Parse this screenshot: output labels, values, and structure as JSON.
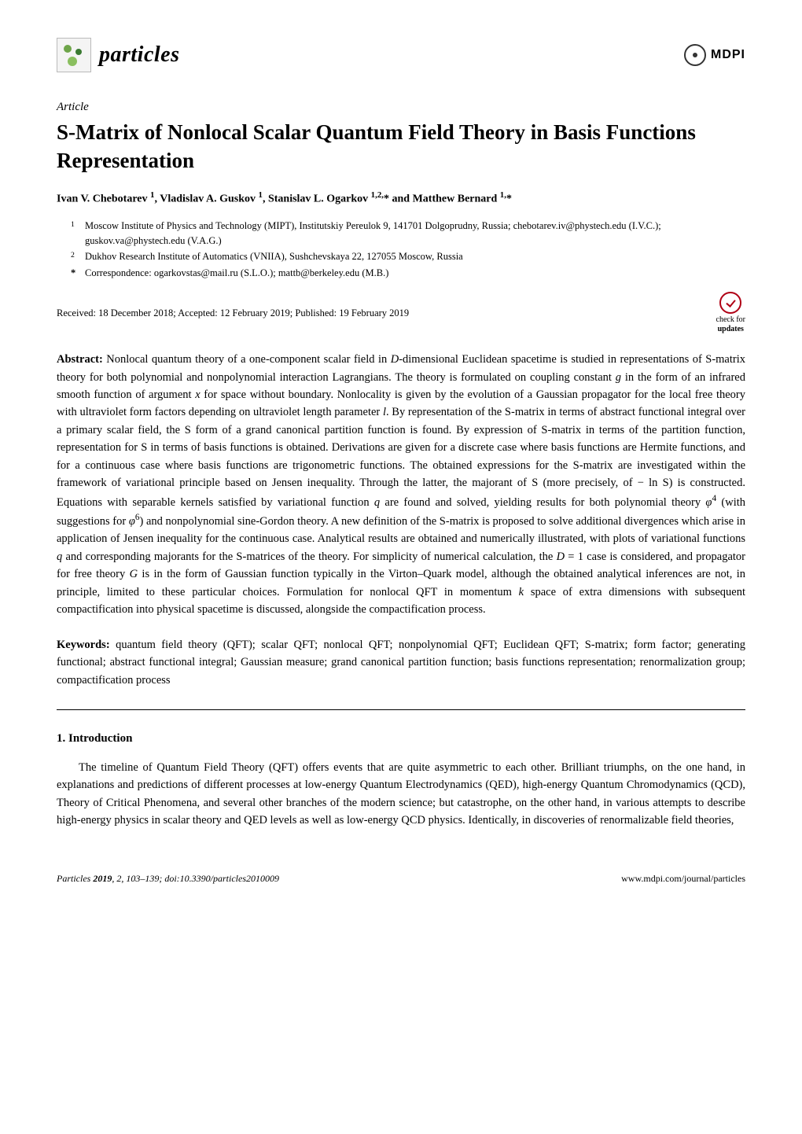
{
  "journal": {
    "name": "particles",
    "logo_bg": "#f4f4f4",
    "logo_border": "#bababa"
  },
  "publisher": {
    "name": "MDPI"
  },
  "article_label": "Article",
  "title_html": "<span class=\"calS\">S</span>-Matrix of Nonlocal Scalar Quantum Field Theory in Basis Functions Representation",
  "authors_html": "Ivan V. Chebotarev <sup>1</sup>, Vladislav A. Guskov <sup>1</sup>, Stanislav L. Ogarkov <sup>1,2,</sup>* and Matthew Bernard <sup>1,</sup>*",
  "affiliations": [
    {
      "num": "1",
      "text": "Moscow Institute of Physics and Technology (MIPT), Institutskiy Pereulok 9, 141701 Dolgoprudny, Russia; chebotarev.iv@phystech.edu (I.V.C.); guskov.va@phystech.edu (V.A.G.)"
    },
    {
      "num": "2",
      "text": "Dukhov Research Institute of Automatics (VNIIA), Sushchevskaya 22, 127055 Moscow, Russia"
    },
    {
      "num": "*",
      "text": "Correspondence: ogarkovstas@mail.ru (S.L.O.); mattb@berkeley.edu (M.B.)"
    }
  ],
  "dates": "Received: 18 December 2018; Accepted: 12 February 2019; Published: 19 February 2019",
  "updates_badge": {
    "top": "check for",
    "bottom": "updates",
    "ring_color": "#b00015"
  },
  "abstract_label": "Abstract:",
  "abstract_html": "Nonlocal quantum theory of a one-component scalar field in <i>D</i>-dimensional Euclidean spacetime is studied in representations of <span class=\"calS\">S</span>-matrix theory for both polynomial and nonpolynomial interaction Lagrangians. The theory is formulated on coupling constant <i>g</i> in the form of an infrared smooth function of argument <i>x</i> for space without boundary. Nonlocality is given by the evolution of a Gaussian propagator for the local free theory with ultraviolet form factors depending on ultraviolet length parameter <i>l</i>. By representation of the <span class=\"calS\">S</span>-matrix in terms of abstract functional integral over a primary scalar field, the <span class=\"calS\">S</span> form of a grand canonical partition function is found. By expression of <span class=\"calS\">S</span>-matrix in terms of the partition function, representation for <span class=\"calS\">S</span> in terms of basis functions is obtained. Derivations are given for a discrete case where basis functions are Hermite functions, and for a continuous case where basis functions are trigonometric functions. The obtained expressions for the <span class=\"calS\">S</span>-matrix are investigated within the framework of variational principle based on Jensen inequality. Through the latter, the majorant of <span class=\"calS\">S</span> (more precisely, of − ln <span class=\"calS\">S</span>) is constructed. Equations with separable kernels satisfied by variational function <i>q</i> are found and solved, yielding results for both polynomial theory <i>φ</i><sup>4</sup> (with suggestions for <i>φ</i><sup>6</sup>) and nonpolynomial sine-Gordon theory. A new definition of the <span class=\"calS\">S</span>-matrix is proposed to solve additional divergences which arise in application of Jensen inequality for the continuous case. Analytical results are obtained and numerically illustrated, with plots of variational functions <i>q</i> and corresponding majorants for the <span class=\"calS\">S</span>-matrices of the theory. For simplicity of numerical calculation, the <i>D</i> = 1 case is considered, and propagator for free theory <i>G</i> is in the form of Gaussian function typically in the Virton–Quark model, although the obtained analytical inferences are not, in principle, limited to these particular choices. Formulation for nonlocal QFT in momentum <i>k</i> space of extra dimensions with subsequent compactification into physical spacetime is discussed, alongside the compactification process.",
  "keywords_label": "Keywords:",
  "keywords_html": "quantum field theory (QFT); scalar QFT; nonlocal QFT; nonpolynomial QFT; Euclidean QFT; <span class=\"calS\">S</span>-matrix; form factor; generating functional; abstract functional integral; Gaussian measure; grand canonical partition function; basis functions representation; renormalization group; compactification process",
  "section1": {
    "heading": "1. Introduction"
  },
  "intro_text": "The timeline of Quantum Field Theory (QFT) offers events that are quite asymmetric to each other. Brilliant triumphs, on the one hand, in explanations and predictions of different processes at low-energy Quantum Electrodynamics (QED), high-energy Quantum Chromodynamics (QCD), Theory of Critical Phenomena, and several other branches of the modern science; but catastrophe, on the other hand, in various attempts to describe high-energy physics in scalar theory and QED levels as well as low-energy QCD physics. Identically, in discoveries of renormalizable field theories,",
  "footer": {
    "left_html": "<i>Particles</i> <b>2019</b>, <i>2</i>, 103–139; doi:10.3390/particles2010009",
    "right": "www.mdpi.com/journal/particles"
  },
  "colors": {
    "text": "#000000",
    "background": "#ffffff",
    "hr": "#000000"
  },
  "fontsizes": {
    "title": 27,
    "journal": 28,
    "body": 14.5,
    "affil": 12.5,
    "footer": 12
  }
}
